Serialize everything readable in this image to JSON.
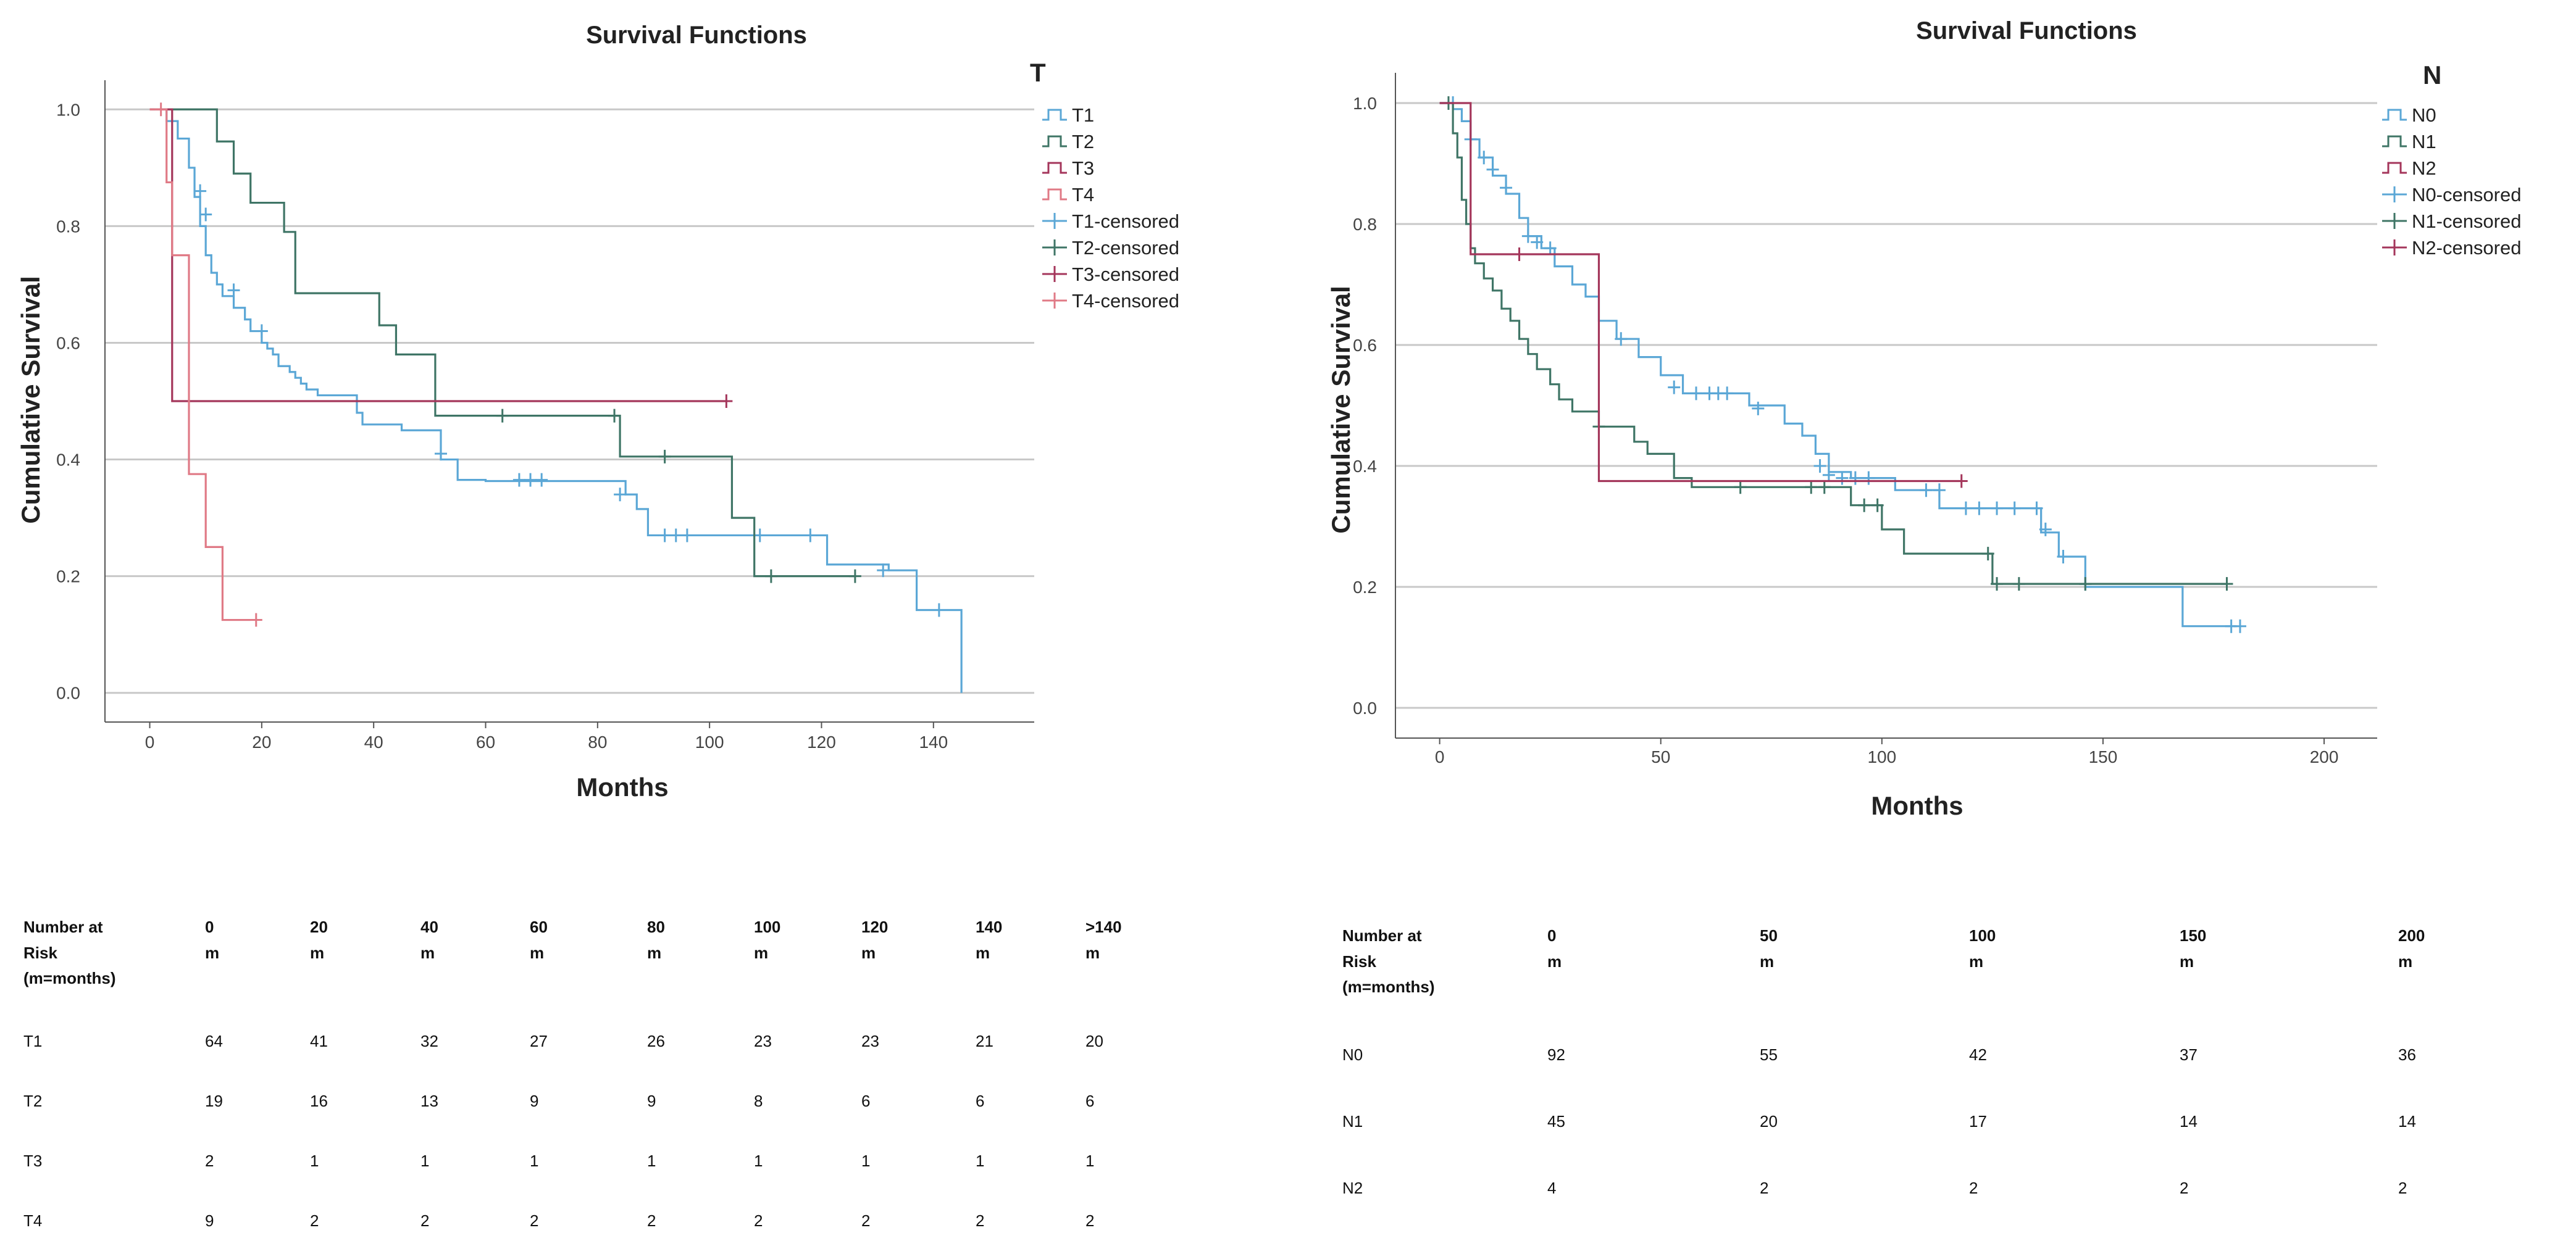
{
  "charts": [
    {
      "id": "T",
      "title": "Survival Functions",
      "xlabel": "Months",
      "ylabel": "Cumulative Survival",
      "legend_title": "T",
      "legend": [
        "T1",
        "T2",
        "T3",
        "T4",
        "T1-censored",
        "T2-censored",
        "T3-censored",
        "T4-censored"
      ],
      "xticks": [
        "0",
        "20",
        "40",
        "60",
        "80",
        "100",
        "120",
        "140"
      ],
      "yticks": [
        "0.0",
        "0.2",
        "0.4",
        "0.6",
        "0.8",
        "1.0"
      ]
    },
    {
      "id": "N",
      "title": "Survival Functions",
      "xlabel": "Months",
      "ylabel": "Cumulative Survival",
      "legend_title": "N",
      "legend": [
        "N0",
        "N1",
        "N2",
        "N0-censored",
        "N1-censored",
        "N2-censored"
      ],
      "xticks": [
        "0",
        "50",
        "100",
        "150",
        "200"
      ],
      "yticks": [
        "0.0",
        "0.2",
        "0.4",
        "0.6",
        "0.8",
        "1.0"
      ]
    }
  ],
  "colors": {
    "T1": "#5ba7d6",
    "T2": "#3f7566",
    "T3": "#a4365b",
    "T4": "#e07a86",
    "N0": "#5ba7d6",
    "N1": "#3f7566",
    "N2": "#a4365b",
    "grid": "#c8c8c8"
  },
  "chart_data": [
    {
      "type": "line",
      "title": "Survival Functions",
      "xlabel": "Months",
      "ylabel": "Cumulative Survival",
      "xlim": [
        -8,
        158
      ],
      "ylim": [
        -0.05,
        1.05
      ],
      "series": [
        {
          "name": "T1",
          "steps": [
            [
              0,
              1.0
            ],
            [
              3,
              0.98
            ],
            [
              5,
              0.95
            ],
            [
              7,
              0.9
            ],
            [
              8,
              0.85
            ],
            [
              9,
              0.8
            ],
            [
              10,
              0.75
            ],
            [
              11,
              0.72
            ],
            [
              12,
              0.7
            ],
            [
              13,
              0.68
            ],
            [
              15,
              0.66
            ],
            [
              17,
              0.64
            ],
            [
              18,
              0.62
            ],
            [
              20,
              0.6
            ],
            [
              21,
              0.59
            ],
            [
              22,
              0.58
            ],
            [
              23,
              0.56
            ],
            [
              25,
              0.55
            ],
            [
              26,
              0.54
            ],
            [
              27,
              0.53
            ],
            [
              28,
              0.52
            ],
            [
              30,
              0.51
            ],
            [
              37,
              0.48
            ],
            [
              38,
              0.46
            ],
            [
              45,
              0.45
            ],
            [
              52,
              0.4
            ],
            [
              55,
              0.365
            ],
            [
              60,
              0.363
            ],
            [
              85,
              0.34
            ],
            [
              87,
              0.315
            ],
            [
              89,
              0.27
            ],
            [
              120,
              0.27
            ],
            [
              121,
              0.22
            ],
            [
              132,
              0.21
            ],
            [
              137,
              0.142
            ],
            [
              145,
              0.142
            ],
            [
              145,
              0.0
            ]
          ],
          "censored": [
            [
              9,
              0.86
            ],
            [
              10,
              0.82
            ],
            [
              15,
              0.69
            ],
            [
              20,
              0.62
            ],
            [
              52,
              0.41
            ],
            [
              66,
              0.365
            ],
            [
              68,
              0.365
            ],
            [
              70,
              0.365
            ],
            [
              84,
              0.34
            ],
            [
              92,
              0.27
            ],
            [
              94,
              0.27
            ],
            [
              96,
              0.27
            ],
            [
              109,
              0.27
            ],
            [
              118,
              0.27
            ],
            [
              131,
              0.21
            ],
            [
              141,
              0.142
            ]
          ]
        },
        {
          "name": "T2",
          "steps": [
            [
              0,
              1.0
            ],
            [
              12,
              0.945
            ],
            [
              15,
              0.89
            ],
            [
              18,
              0.84
            ],
            [
              24,
              0.79
            ],
            [
              26,
              0.685
            ],
            [
              41,
              0.63
            ],
            [
              44,
              0.58
            ],
            [
              51,
              0.475
            ],
            [
              84,
              0.405
            ],
            [
              104,
              0.3
            ],
            [
              108,
              0.2
            ],
            [
              126,
              0.2
            ]
          ],
          "censored": [
            [
              63,
              0.475
            ],
            [
              83,
              0.475
            ],
            [
              92,
              0.405
            ],
            [
              111,
              0.2
            ],
            [
              126,
              0.2
            ]
          ]
        },
        {
          "name": "T3",
          "steps": [
            [
              0,
              1.0
            ],
            [
              4,
              0.5
            ],
            [
              103,
              0.5
            ]
          ],
          "censored": [
            [
              103,
              0.5
            ]
          ]
        },
        {
          "name": "T4",
          "steps": [
            [
              0,
              1.0
            ],
            [
              3,
              0.875
            ],
            [
              4,
              0.75
            ],
            [
              7,
              0.375
            ],
            [
              10,
              0.25
            ],
            [
              13,
              0.125
            ],
            [
              18,
              0.125
            ]
          ],
          "censored": [
            [
              2,
              1.0
            ],
            [
              19,
              0.125
            ]
          ]
        }
      ],
      "legend": [
        "T1",
        "T2",
        "T3",
        "T4",
        "T1-censored",
        "T2-censored",
        "T3-censored",
        "T4-censored"
      ],
      "legend_title": "T"
    },
    {
      "type": "line",
      "title": "Survival Functions",
      "xlabel": "Months",
      "ylabel": "Cumulative Survival",
      "xlim": [
        -10,
        212
      ],
      "ylim": [
        -0.05,
        1.05
      ],
      "series": [
        {
          "name": "N0",
          "steps": [
            [
              0,
              1.0
            ],
            [
              3,
              0.99
            ],
            [
              5,
              0.97
            ],
            [
              7,
              0.94
            ],
            [
              9,
              0.91
            ],
            [
              12,
              0.88
            ],
            [
              15,
              0.85
            ],
            [
              18,
              0.81
            ],
            [
              20,
              0.78
            ],
            [
              23,
              0.76
            ],
            [
              26,
              0.73
            ],
            [
              30,
              0.7
            ],
            [
              33,
              0.68
            ],
            [
              36,
              0.64
            ],
            [
              40,
              0.61
            ],
            [
              45,
              0.58
            ],
            [
              50,
              0.55
            ],
            [
              55,
              0.52
            ],
            [
              70,
              0.5
            ],
            [
              78,
              0.47
            ],
            [
              82,
              0.45
            ],
            [
              85,
              0.42
            ],
            [
              88,
              0.39
            ],
            [
              93,
              0.38
            ],
            [
              103,
              0.36
            ],
            [
              113,
              0.33
            ],
            [
              136,
              0.29
            ],
            [
              140,
              0.25
            ],
            [
              146,
              0.2
            ],
            [
              168,
              0.135
            ],
            [
              180,
              0.135
            ]
          ],
          "censored": [
            [
              3,
              1.0
            ],
            [
              7,
              0.94
            ],
            [
              10,
              0.91
            ],
            [
              12,
              0.89
            ],
            [
              15,
              0.86
            ],
            [
              20,
              0.78
            ],
            [
              22,
              0.77
            ],
            [
              25,
              0.76
            ],
            [
              41,
              0.61
            ],
            [
              53,
              0.53
            ],
            [
              58,
              0.52
            ],
            [
              61,
              0.52
            ],
            [
              63,
              0.52
            ],
            [
              65,
              0.52
            ],
            [
              72,
              0.495
            ],
            [
              86,
              0.4
            ],
            [
              88,
              0.385
            ],
            [
              91,
              0.38
            ],
            [
              94,
              0.38
            ],
            [
              97,
              0.38
            ],
            [
              110,
              0.36
            ],
            [
              113,
              0.36
            ],
            [
              119,
              0.33
            ],
            [
              122,
              0.33
            ],
            [
              126,
              0.33
            ],
            [
              130,
              0.33
            ],
            [
              135,
              0.33
            ],
            [
              137,
              0.295
            ],
            [
              141,
              0.25
            ],
            [
              146,
              0.205
            ],
            [
              179,
              0.135
            ],
            [
              181,
              0.135
            ]
          ]
        },
        {
          "name": "N1",
          "steps": [
            [
              0,
              1.0
            ],
            [
              3,
              0.95
            ],
            [
              4,
              0.91
            ],
            [
              5,
              0.84
            ],
            [
              6,
              0.8
            ],
            [
              7,
              0.76
            ],
            [
              8,
              0.735
            ],
            [
              10,
              0.71
            ],
            [
              12,
              0.69
            ],
            [
              14,
              0.66
            ],
            [
              16,
              0.64
            ],
            [
              18,
              0.61
            ],
            [
              20,
              0.585
            ],
            [
              22,
              0.56
            ],
            [
              25,
              0.535
            ],
            [
              27,
              0.51
            ],
            [
              30,
              0.49
            ],
            [
              36,
              0.465
            ],
            [
              44,
              0.44
            ],
            [
              47,
              0.42
            ],
            [
              53,
              0.38
            ],
            [
              57,
              0.365
            ],
            [
              85,
              0.365
            ],
            [
              93,
              0.335
            ],
            [
              100,
              0.295
            ],
            [
              105,
              0.255
            ],
            [
              125,
              0.205
            ],
            [
              178,
              0.205
            ]
          ],
          "censored": [
            [
              2,
              1.0
            ],
            [
              36,
              0.465
            ],
            [
              68,
              0.365
            ],
            [
              84,
              0.365
            ],
            [
              87,
              0.365
            ],
            [
              96,
              0.335
            ],
            [
              99,
              0.335
            ],
            [
              124,
              0.255
            ],
            [
              126,
              0.205
            ],
            [
              131,
              0.205
            ],
            [
              146,
              0.205
            ],
            [
              178,
              0.205
            ]
          ]
        },
        {
          "name": "N2",
          "steps": [
            [
              0,
              1.0
            ],
            [
              7,
              0.75
            ],
            [
              36,
              0.375
            ],
            [
              118,
              0.375
            ]
          ],
          "censored": [
            [
              18,
              0.75
            ],
            [
              118,
              0.375
            ]
          ]
        }
      ],
      "legend": [
        "N0",
        "N1",
        "N2",
        "N0-censored",
        "N1-censored",
        "N2-censored"
      ],
      "legend_title": "N"
    }
  ],
  "risk_tables": [
    {
      "id": "T",
      "header_label": [
        "Number at",
        "Risk",
        "(m=months)"
      ],
      "columns": [
        [
          "0",
          "m"
        ],
        [
          "20",
          "m"
        ],
        [
          "40",
          "m"
        ],
        [
          "60",
          "m"
        ],
        [
          "80",
          "m"
        ],
        [
          "100",
          "m"
        ],
        [
          "120",
          "m"
        ],
        [
          "140",
          "m"
        ],
        [
          ">140",
          "m"
        ]
      ],
      "rows": [
        {
          "label": "T1",
          "values": [
            "64",
            "41",
            "32",
            "27",
            "26",
            "23",
            "23",
            "21",
            "20"
          ]
        },
        {
          "label": "T2",
          "values": [
            "19",
            "16",
            "13",
            "9",
            "9",
            "8",
            "6",
            "6",
            "6"
          ]
        },
        {
          "label": "T3",
          "values": [
            "2",
            "1",
            "1",
            "1",
            "1",
            "1",
            "1",
            "1",
            "1"
          ]
        },
        {
          "label": "T4",
          "values": [
            "9",
            "2",
            "2",
            "2",
            "2",
            "2",
            "2",
            "2",
            "2"
          ]
        }
      ]
    },
    {
      "id": "N",
      "header_label": [
        "Number at",
        "Risk",
        "(m=months)"
      ],
      "columns": [
        [
          "0",
          "m"
        ],
        [
          "50",
          "m"
        ],
        [
          "100",
          "m"
        ],
        [
          "150",
          "m"
        ],
        [
          "200",
          "m"
        ]
      ],
      "rows": [
        {
          "label": "N0",
          "values": [
            "92",
            "55",
            "42",
            "37",
            "36"
          ]
        },
        {
          "label": "N1",
          "values": [
            "45",
            "20",
            "17",
            "14",
            "14"
          ]
        },
        {
          "label": "N2",
          "values": [
            "4",
            "2",
            "2",
            "2",
            "2"
          ]
        }
      ]
    }
  ]
}
